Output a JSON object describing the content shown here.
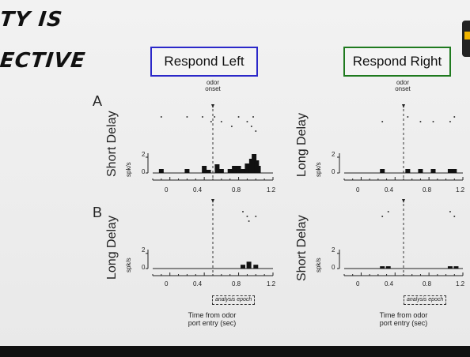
{
  "slide": {
    "title_lines": [
      "TY IS",
      "ECTIVE"
    ],
    "respond_left": "Respond Left",
    "respond_right": "Respond Right",
    "colors": {
      "left_box": "#2b28c9",
      "right_box": "#1f7a1f",
      "bars": "#111111",
      "background": "#ececec"
    },
    "odor_onset": [
      "odor",
      "onset"
    ],
    "row_letters": [
      "A",
      "B"
    ],
    "panels": [
      {
        "name": "A-left",
        "condition": "Short Delay",
        "ylabel": "spk/s",
        "yticks": [
          "2",
          "0"
        ]
      },
      {
        "name": "A-right",
        "condition": "Long Delay",
        "ylabel": "spk/s",
        "yticks": [
          "2",
          "0"
        ]
      },
      {
        "name": "B-left",
        "condition": "Long Delay",
        "ylabel": "spk/s",
        "yticks": [
          "2",
          "0"
        ]
      },
      {
        "name": "B-right",
        "condition": "Short Delay",
        "ylabel": "spk/s",
        "yticks": [
          "2",
          "0"
        ]
      }
    ],
    "x_ticks": [
      "0",
      "0.4",
      "0.8",
      "1.2"
    ],
    "analysis_epoch": "analysis epoch",
    "x_title": [
      "Time from odor",
      "port entry (sec)"
    ]
  },
  "chart_data": [
    {
      "type": "bar",
      "panel": "A-left",
      "xlabel": "Time from odor port entry (sec)",
      "ylabel": "spk/s",
      "xlim": [
        -0.2,
        1.2
      ],
      "ylim": [
        0,
        2.5
      ],
      "odor_onset": 0.5,
      "bins": [
        {
          "x": -0.1,
          "y": 0.5
        },
        {
          "x": 0.1,
          "y": 0.0
        },
        {
          "x": 0.2,
          "y": 0.5
        },
        {
          "x": 0.4,
          "y": 0.9
        },
        {
          "x": 0.45,
          "y": 0.4
        },
        {
          "x": 0.55,
          "y": 1.1
        },
        {
          "x": 0.6,
          "y": 0.5
        },
        {
          "x": 0.7,
          "y": 0.5
        },
        {
          "x": 0.75,
          "y": 0.9
        },
        {
          "x": 0.8,
          "y": 0.9
        },
        {
          "x": 0.85,
          "y": 0.5
        },
        {
          "x": 0.9,
          "y": 1.2
        },
        {
          "x": 0.95,
          "y": 1.8
        },
        {
          "x": 0.98,
          "y": 2.4
        },
        {
          "x": 1.01,
          "y": 1.6
        },
        {
          "x": 1.03,
          "y": 0.9
        }
      ],
      "raster": [
        {
          "x": -0.1,
          "row": 0
        },
        {
          "x": 0.2,
          "row": 0
        },
        {
          "x": 0.38,
          "row": 0
        },
        {
          "x": 0.48,
          "row": 1
        },
        {
          "x": 0.52,
          "row": 0
        },
        {
          "x": 0.6,
          "row": 1
        },
        {
          "x": 0.72,
          "row": 2
        },
        {
          "x": 0.8,
          "row": 0
        },
        {
          "x": 0.9,
          "row": 1
        },
        {
          "x": 0.95,
          "row": 2
        },
        {
          "x": 0.97,
          "row": 0
        },
        {
          "x": 1.0,
          "row": 3
        }
      ]
    },
    {
      "type": "bar",
      "panel": "A-right",
      "xlabel": "Time from odor port entry (sec)",
      "ylabel": "spk/s",
      "xlim": [
        -0.2,
        1.2
      ],
      "ylim": [
        0,
        2.5
      ],
      "odor_onset": 0.5,
      "bins": [
        {
          "x": 0.25,
          "y": 0.5
        },
        {
          "x": 0.55,
          "y": 0.5
        },
        {
          "x": 0.7,
          "y": 0.5
        },
        {
          "x": 0.85,
          "y": 0.5
        },
        {
          "x": 1.05,
          "y": 0.5
        },
        {
          "x": 1.1,
          "y": 0.5
        }
      ],
      "raster": [
        {
          "x": 0.25,
          "row": 1
        },
        {
          "x": 0.55,
          "row": 0
        },
        {
          "x": 0.7,
          "row": 1
        },
        {
          "x": 0.85,
          "row": 1
        },
        {
          "x": 1.05,
          "row": 1
        },
        {
          "x": 1.1,
          "row": 0
        }
      ]
    },
    {
      "type": "bar",
      "panel": "B-left",
      "xlabel": "Time from odor port entry (sec)",
      "ylabel": "spk/s",
      "xlim": [
        -0.2,
        1.2
      ],
      "ylim": [
        0,
        2.5
      ],
      "odor_onset": 0.5,
      "bins": [
        {
          "x": 0.85,
          "y": 0.5
        },
        {
          "x": 0.92,
          "y": 0.9
        },
        {
          "x": 1.0,
          "y": 0.5
        }
      ],
      "raster": [
        {
          "x": 0.85,
          "row": 0
        },
        {
          "x": 0.9,
          "row": 1
        },
        {
          "x": 1.0,
          "row": 1
        },
        {
          "x": 0.92,
          "row": 2
        }
      ]
    },
    {
      "type": "bar",
      "panel": "B-right",
      "xlabel": "Time from odor port entry (sec)",
      "ylabel": "spk/s",
      "xlim": [
        -0.2,
        1.2
      ],
      "ylim": [
        0,
        2.5
      ],
      "odor_onset": 0.5,
      "bins": [
        {
          "x": 0.25,
          "y": 0.3
        },
        {
          "x": 0.32,
          "y": 0.3
        },
        {
          "x": 1.05,
          "y": 0.3
        },
        {
          "x": 1.12,
          "y": 0.3
        }
      ],
      "raster": [
        {
          "x": 0.25,
          "row": 1
        },
        {
          "x": 0.32,
          "row": 0
        },
        {
          "x": 1.05,
          "row": 0
        },
        {
          "x": 1.1,
          "row": 1
        }
      ]
    }
  ]
}
